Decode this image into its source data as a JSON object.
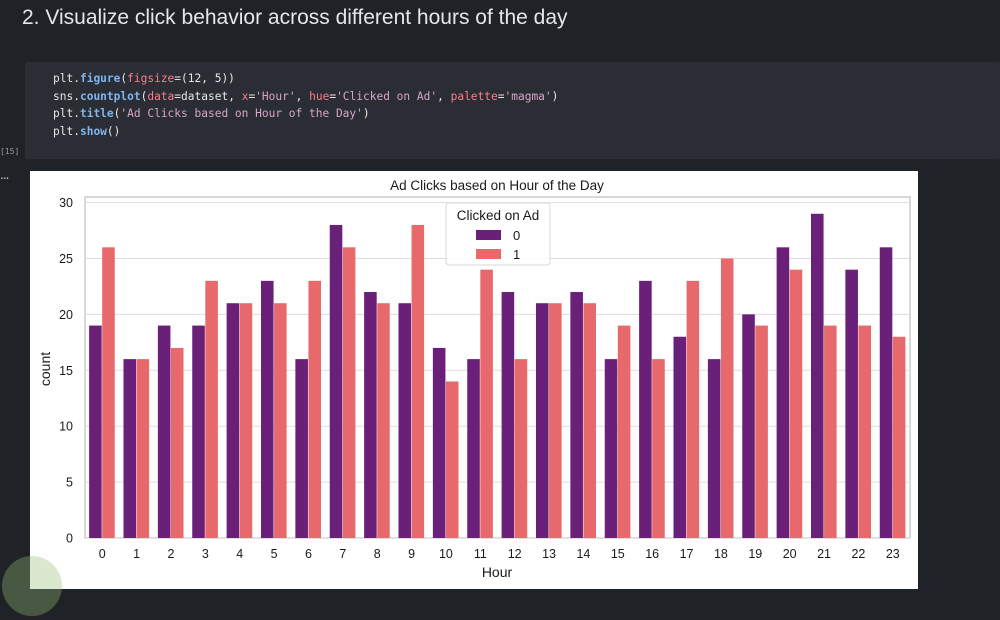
{
  "notebook": {
    "heading": "2. Visualize click behavior across different hours of the day",
    "exec_count": "[15]",
    "output_marker": "...",
    "code": {
      "line1": [
        "plt",
        ".",
        "figure",
        "(",
        "figsize",
        "=(12, 5))"
      ],
      "line2": [
        "sns",
        ".",
        "countplot",
        "(",
        "data",
        "=",
        "dataset",
        ", ",
        "x",
        "=",
        "'Hour'",
        ", ",
        "hue",
        "=",
        "'Clicked on Ad'",
        ", ",
        "palette",
        "=",
        "'magma'",
        ")"
      ],
      "line3": [
        "plt",
        ".",
        "title",
        "(",
        "'Ad Clicks based on Hour of the Day'",
        ")"
      ],
      "line4": [
        "plt",
        ".",
        "show",
        "()"
      ]
    }
  },
  "chart_data": {
    "type": "bar",
    "title": "Ad Clicks based on Hour of the Day",
    "xlabel": "Hour",
    "ylabel": "count",
    "ylim": [
      0,
      30.5
    ],
    "yticks": [
      0,
      5,
      10,
      15,
      20,
      25,
      30
    ],
    "categories": [
      "0",
      "1",
      "2",
      "3",
      "4",
      "5",
      "6",
      "7",
      "8",
      "9",
      "10",
      "11",
      "12",
      "13",
      "14",
      "15",
      "16",
      "17",
      "18",
      "19",
      "20",
      "21",
      "22",
      "23"
    ],
    "legend": {
      "title": "Clicked on Ad",
      "position": "top-center"
    },
    "series": [
      {
        "name": "0",
        "color": "#6a1f78",
        "values": [
          19,
          16,
          19,
          19,
          21,
          23,
          16,
          28,
          22,
          21,
          17,
          16,
          22,
          21,
          22,
          16,
          23,
          18,
          16,
          20,
          26,
          29,
          24,
          26
        ]
      },
      {
        "name": "1",
        "color": "#e8696b",
        "values": [
          26,
          16,
          17,
          23,
          21,
          21,
          23,
          26,
          21,
          28,
          14,
          24,
          16,
          21,
          21,
          19,
          16,
          23,
          25,
          19,
          24,
          19,
          19,
          18
        ]
      }
    ]
  }
}
